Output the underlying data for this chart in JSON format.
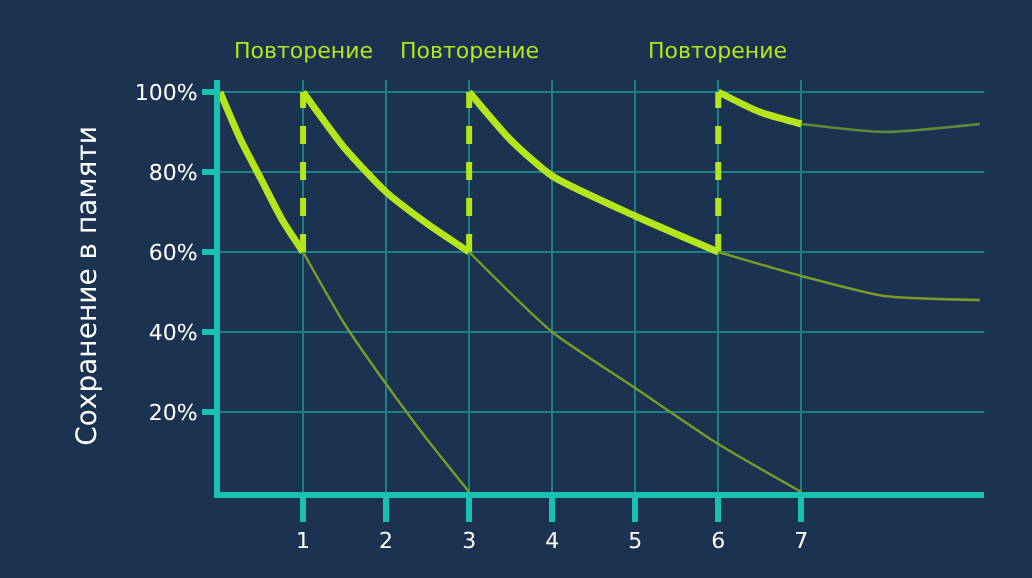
{
  "chart_data": {
    "type": "line",
    "ylabel": "Сохранение в памяти",
    "xlim": [
      0,
      9.2
    ],
    "ylim": [
      0,
      103
    ],
    "xticks": [
      1,
      2,
      3,
      4,
      5,
      6,
      7
    ],
    "yticks": [
      {
        "value": 20,
        "label": "20%"
      },
      {
        "value": 40,
        "label": "40%"
      },
      {
        "value": 60,
        "label": "60%"
      },
      {
        "value": 80,
        "label": "80%"
      },
      {
        "value": 100,
        "label": "100%"
      }
    ],
    "grid": true,
    "marker": "none",
    "series": [
      {
        "color": "#b5e61d",
        "x": [
          0,
          0.25,
          0.5,
          0.75,
          1
        ],
        "values": [
          100,
          88,
          78,
          68,
          60
        ],
        "line_style": "solid"
      },
      {
        "color": "#b5e61d",
        "x": [
          1,
          1.5,
          2,
          2.5,
          3
        ],
        "values": [
          100,
          86,
          75,
          67,
          60
        ],
        "line_style": "solid"
      },
      {
        "color": "#b5e61d",
        "x": [
          3,
          3.5,
          4,
          5,
          6
        ],
        "values": [
          100,
          88,
          79,
          69,
          60
        ],
        "line_style": "solid"
      },
      {
        "color": "#b5e61d",
        "x": [
          6,
          6.5,
          7
        ],
        "values": [
          100,
          95,
          92
        ],
        "line_style": "solid"
      },
      {
        "color": "#b5e61d",
        "x": [
          1,
          1
        ],
        "values": [
          60,
          100
        ],
        "line_style": "dashed"
      },
      {
        "color": "#b5e61d",
        "x": [
          3,
          3
        ],
        "values": [
          60,
          100
        ],
        "line_style": "dashed"
      },
      {
        "color": "#b5e61d",
        "x": [
          6,
          6
        ],
        "values": [
          60,
          100
        ],
        "line_style": "dashed"
      },
      {
        "color": "#7a9a2a",
        "x": [
          1,
          1.5,
          2,
          2.5,
          3
        ],
        "values": [
          60,
          42,
          27,
          13,
          0
        ],
        "line_style": "solid"
      },
      {
        "color": "#7a9a2a",
        "x": [
          3,
          4,
          5,
          6,
          7
        ],
        "values": [
          60,
          40,
          26,
          12,
          0
        ],
        "line_style": "solid"
      },
      {
        "color": "#7a9a2a",
        "x": [
          6,
          7,
          8,
          9.15
        ],
        "values": [
          60,
          54,
          49,
          48
        ],
        "line_style": "solid"
      },
      {
        "color": "#5f8a3a",
        "x": [
          7,
          8,
          9.15
        ],
        "values": [
          92,
          90,
          92
        ],
        "line_style": "solid"
      }
    ],
    "annotations": [
      {
        "text": "Повторение",
        "x": 1,
        "y": 100
      },
      {
        "text": "Повторение",
        "x": 3,
        "y": 100
      },
      {
        "text": "Повторение",
        "x": 6,
        "y": 100
      }
    ]
  }
}
